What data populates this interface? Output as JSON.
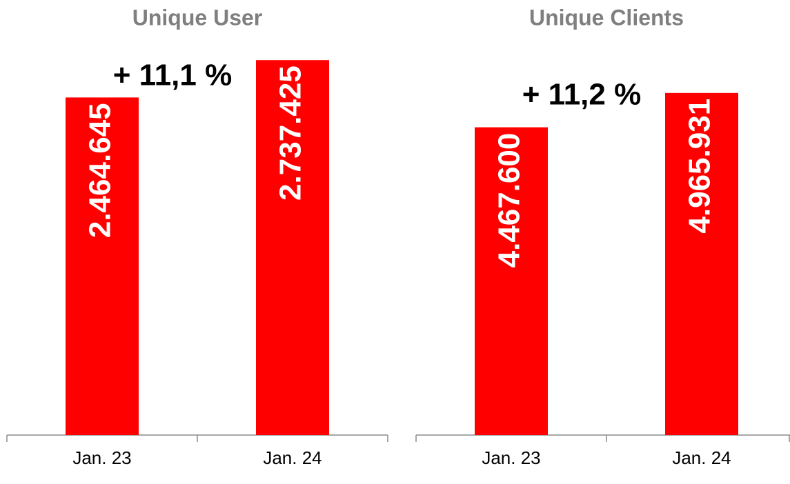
{
  "chart_data": [
    {
      "type": "bar",
      "title": "Unique User",
      "categories": [
        "Jan. 23",
        "Jan. 24"
      ],
      "values": [
        2464645,
        2737425
      ],
      "value_labels": [
        "2.464.645",
        "2.737.425"
      ],
      "color": "#ff0000",
      "ylim": [
        0,
        2975000
      ],
      "annotation": "+ 11,1 %"
    },
    {
      "type": "bar",
      "title": "Unique Clients",
      "categories": [
        "Jan. 23",
        "Jan. 24"
      ],
      "values": [
        4467600,
        4965931
      ],
      "value_labels": [
        "4.467.600",
        "4.965.931"
      ],
      "color": "#ff0000",
      "ylim": [
        0,
        5915000
      ],
      "annotation": "+ 11,2 %"
    }
  ]
}
